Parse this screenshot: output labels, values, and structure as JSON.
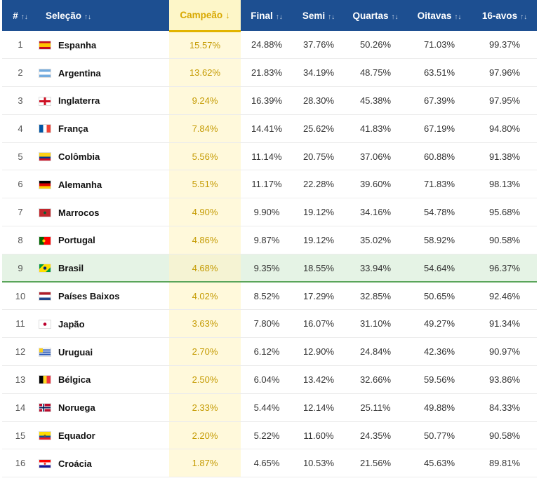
{
  "table": {
    "headers": {
      "rank": "#",
      "team": "Seleção",
      "champion": "Campeão",
      "final": "Final",
      "semi": "Semi",
      "quarters": "Quartas",
      "round16": "Oitavas",
      "round32": "16-avos"
    },
    "sort_icons": {
      "neutral": "↑↓",
      "active": "↓"
    },
    "highlight_rank": "9",
    "rows": [
      {
        "rank": "1",
        "team": "Espanha",
        "flag": "spain",
        "champion": "15.57%",
        "final": "24.88%",
        "semi": "37.76%",
        "quarters": "50.26%",
        "round16": "71.03%",
        "round32": "99.37%"
      },
      {
        "rank": "2",
        "team": "Argentina",
        "flag": "argentina",
        "champion": "13.62%",
        "final": "21.83%",
        "semi": "34.19%",
        "quarters": "48.75%",
        "round16": "63.51%",
        "round32": "97.96%"
      },
      {
        "rank": "3",
        "team": "Inglaterra",
        "flag": "england",
        "champion": "9.24%",
        "final": "16.39%",
        "semi": "28.30%",
        "quarters": "45.38%",
        "round16": "67.39%",
        "round32": "97.95%"
      },
      {
        "rank": "4",
        "team": "França",
        "flag": "france",
        "champion": "7.84%",
        "final": "14.41%",
        "semi": "25.62%",
        "quarters": "41.83%",
        "round16": "67.19%",
        "round32": "94.80%"
      },
      {
        "rank": "5",
        "team": "Colômbia",
        "flag": "colombia",
        "champion": "5.56%",
        "final": "11.14%",
        "semi": "20.75%",
        "quarters": "37.06%",
        "round16": "60.88%",
        "round32": "91.38%"
      },
      {
        "rank": "6",
        "team": "Alemanha",
        "flag": "germany",
        "champion": "5.51%",
        "final": "11.17%",
        "semi": "22.28%",
        "quarters": "39.60%",
        "round16": "71.83%",
        "round32": "98.13%"
      },
      {
        "rank": "7",
        "team": "Marrocos",
        "flag": "morocco",
        "champion": "4.90%",
        "final": "9.90%",
        "semi": "19.12%",
        "quarters": "34.16%",
        "round16": "54.78%",
        "round32": "95.68%"
      },
      {
        "rank": "8",
        "team": "Portugal",
        "flag": "portugal",
        "champion": "4.86%",
        "final": "9.87%",
        "semi": "19.12%",
        "quarters": "35.02%",
        "round16": "58.92%",
        "round32": "90.58%"
      },
      {
        "rank": "9",
        "team": "Brasil",
        "flag": "brazil",
        "champion": "4.68%",
        "final": "9.35%",
        "semi": "18.55%",
        "quarters": "33.94%",
        "round16": "54.64%",
        "round32": "96.37%"
      },
      {
        "rank": "10",
        "team": "Países Baixos",
        "flag": "netherlands",
        "champion": "4.02%",
        "final": "8.52%",
        "semi": "17.29%",
        "quarters": "32.85%",
        "round16": "50.65%",
        "round32": "92.46%"
      },
      {
        "rank": "11",
        "team": "Japão",
        "flag": "japan",
        "champion": "3.63%",
        "final": "7.80%",
        "semi": "16.07%",
        "quarters": "31.10%",
        "round16": "49.27%",
        "round32": "91.34%"
      },
      {
        "rank": "12",
        "team": "Uruguai",
        "flag": "uruguay",
        "champion": "2.70%",
        "final": "6.12%",
        "semi": "12.90%",
        "quarters": "24.84%",
        "round16": "42.36%",
        "round32": "90.97%"
      },
      {
        "rank": "13",
        "team": "Bélgica",
        "flag": "belgium",
        "champion": "2.50%",
        "final": "6.04%",
        "semi": "13.42%",
        "quarters": "32.66%",
        "round16": "59.56%",
        "round32": "93.86%"
      },
      {
        "rank": "14",
        "team": "Noruega",
        "flag": "norway",
        "champion": "2.33%",
        "final": "5.44%",
        "semi": "12.14%",
        "quarters": "25.11%",
        "round16": "49.88%",
        "round32": "84.33%"
      },
      {
        "rank": "15",
        "team": "Equador",
        "flag": "ecuador",
        "champion": "2.20%",
        "final": "5.22%",
        "semi": "11.60%",
        "quarters": "24.35%",
        "round16": "50.77%",
        "round32": "90.58%"
      },
      {
        "rank": "16",
        "team": "Croácia",
        "flag": "croatia",
        "champion": "1.87%",
        "final": "4.65%",
        "semi": "10.53%",
        "quarters": "21.56%",
        "round16": "45.63%",
        "round32": "89.81%"
      }
    ]
  },
  "colors": {
    "header_bg": "#1d4f91",
    "active_header_bg": "#fdf6c8",
    "active_accent": "#e2b400",
    "champion_text": "#c49a00",
    "highlight_row_bg": "#e5f3e5",
    "highlight_border": "#5aa55a"
  }
}
